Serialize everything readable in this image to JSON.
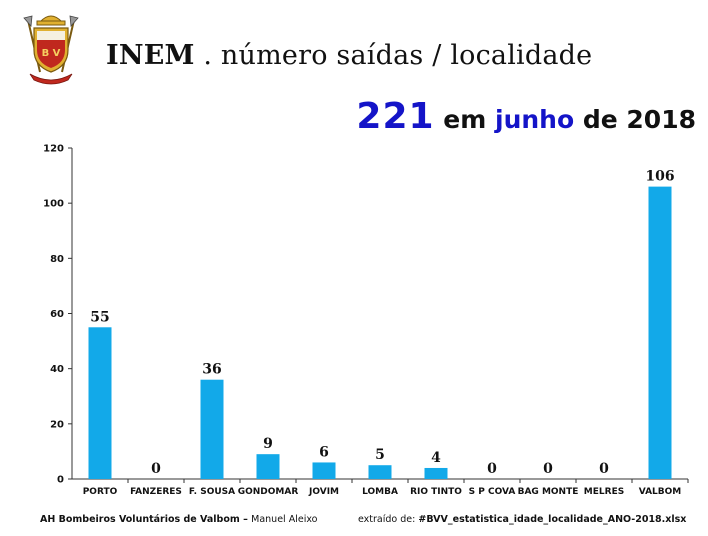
{
  "header": {
    "title_brand": "INEM",
    "title_rest": " . número saídas / localidade",
    "subtitle_total": "221",
    "subtitle_em": "em",
    "subtitle_month": "junho",
    "subtitle_year": "de 2018",
    "logo_text": "B V"
  },
  "chart_data": {
    "type": "bar",
    "categories": [
      "PORTO",
      "FANZERES",
      "F. SOUSA",
      "GONDOMAR",
      "JOVIM",
      "LOMBA",
      "RIO TINTO",
      "S P COVA",
      "BAG MONTE",
      "MELRES",
      "VALBOM"
    ],
    "values": [
      55,
      0,
      36,
      9,
      6,
      5,
      4,
      0,
      0,
      0,
      106
    ],
    "ylim": [
      0,
      120
    ],
    "yticks": [
      0,
      20,
      40,
      60,
      80,
      100,
      120
    ],
    "grid": false,
    "legend": "none",
    "bar_color": "#12a9e9"
  },
  "footer": {
    "org": "AH Bombeiros Voluntários de Valbom",
    "sep": " – ",
    "author": "Manuel Aleixo",
    "source_prefix": "extraído de: ",
    "source_file": "#BVV_estatistica_idade_localidade_ANO-2018.xlsx"
  },
  "colors": {
    "accent": "#1414c8",
    "bar": "#12a9e9",
    "logo_red": "#c0281e",
    "logo_gold": "#e0b030"
  }
}
